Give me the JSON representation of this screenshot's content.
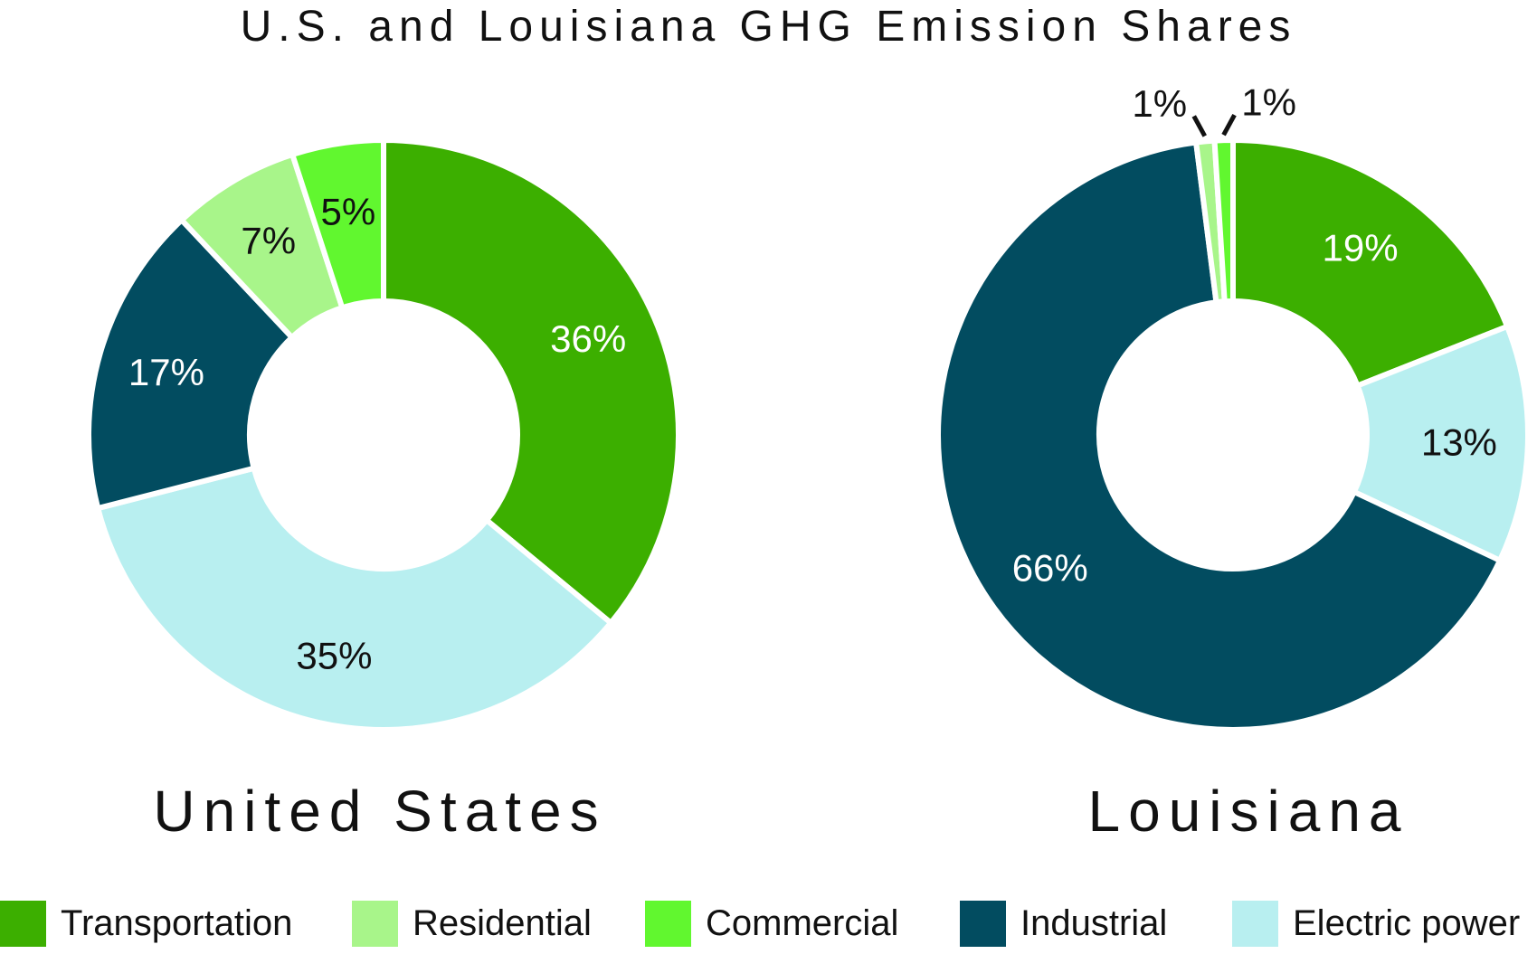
{
  "title": "U.S. and Louisiana GHG Emission Shares",
  "legend": [
    {
      "name": "Transportation",
      "color": "#3caf00"
    },
    {
      "name": "Residential",
      "color": "#a8f58a"
    },
    {
      "name": "Commercial",
      "color": "#61f72f"
    },
    {
      "name": "Industrial",
      "color": "#024c60"
    },
    {
      "name": "Electric power",
      "color": "#b8eff0"
    }
  ],
  "chart_data": [
    {
      "type": "pie",
      "variant": "donut",
      "title": "United States",
      "slices": [
        {
          "category": "Transportation",
          "value": 36,
          "label": "36%",
          "color": "#3caf00",
          "label_color": "#ffffff"
        },
        {
          "category": "Electric power",
          "value": 35,
          "label": "35%",
          "color": "#b8eff0",
          "label_color": "#111111"
        },
        {
          "category": "Industrial",
          "value": 17,
          "label": "17%",
          "color": "#024c60",
          "label_color": "#ffffff"
        },
        {
          "category": "Residential",
          "value": 7,
          "label": "7%",
          "color": "#a8f58a",
          "label_color": "#111111"
        },
        {
          "category": "Commercial",
          "value": 5,
          "label": "5%",
          "color": "#61f72f",
          "label_color": "#111111"
        }
      ]
    },
    {
      "type": "pie",
      "variant": "donut",
      "title": "Louisiana",
      "slices": [
        {
          "category": "Transportation",
          "value": 19,
          "label": "19%",
          "color": "#3caf00",
          "label_color": "#ffffff"
        },
        {
          "category": "Electric power",
          "value": 13,
          "label": "13%",
          "color": "#b8eff0",
          "label_color": "#111111"
        },
        {
          "category": "Industrial",
          "value": 66,
          "label": "66%",
          "color": "#024c60",
          "label_color": "#ffffff"
        },
        {
          "category": "Residential",
          "value": 1,
          "label": "1%",
          "color": "#a8f58a",
          "label_color": "#111111"
        },
        {
          "category": "Commercial",
          "value": 1,
          "label": "1%",
          "color": "#61f72f",
          "label_color": "#111111"
        }
      ]
    }
  ]
}
